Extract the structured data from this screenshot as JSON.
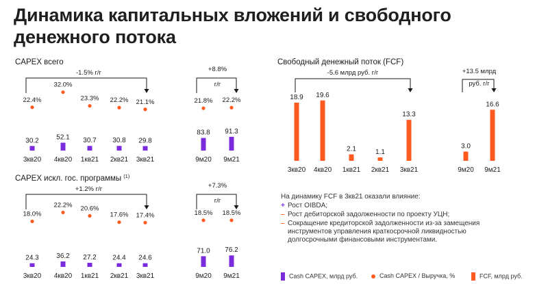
{
  "title": {
    "line1": "Динамика капитальных вложений и свободного",
    "line2": "денежного потока"
  },
  "colors": {
    "capex": "#7a2bdc",
    "ratio": "#ff5a1f",
    "fcf": "#ff5a1f",
    "text": "#1a1a1a"
  },
  "chart_data": [
    {
      "type": "bar",
      "title": "CAPEX всего",
      "categories": [
        "3кв20",
        "4кв20",
        "1кв21",
        "2кв21",
        "3кв21"
      ],
      "series": [
        {
          "name": "Cash CAPEX, млрд руб.",
          "values": [
            30.2,
            52.1,
            30.7,
            30.8,
            29.8
          ]
        },
        {
          "name": "Cash CAPEX / Выручка, %",
          "values": [
            "22.4%",
            "32.0%",
            "23.3%",
            "22.2%",
            "21.1%"
          ]
        }
      ],
      "ratio_values": [
        22.4,
        32.0,
        23.3,
        22.2,
        21.1
      ],
      "change_label": "-1.5% г/г",
      "nine_month": {
        "categories": [
          "9м20",
          "9м21"
        ],
        "values": [
          83.8,
          91.3
        ],
        "ratio_labels": [
          "21.8%",
          "22.2%"
        ],
        "ratio_values": [
          21.8,
          22.2
        ],
        "change_value": "+8.8%",
        "change_unit": "г/г"
      }
    },
    {
      "type": "bar",
      "title": "CAPEX искл. гос. программы",
      "title_sup": "(1)",
      "categories": [
        "3кв20",
        "4кв20",
        "1кв21",
        "2кв21",
        "3кв21"
      ],
      "series": [
        {
          "name": "Cash CAPEX, млрд руб.",
          "values": [
            24.3,
            36.2,
            27.2,
            24.4,
            24.6
          ]
        },
        {
          "name": "Cash CAPEX / Выручка, %",
          "values": [
            "18.0%",
            "22.2%",
            "20.6%",
            "17.6%",
            "17.4%"
          ]
        }
      ],
      "ratio_values": [
        18.0,
        22.2,
        20.6,
        17.6,
        17.4
      ],
      "change_label": "+1.2% г/г",
      "nine_month": {
        "categories": [
          "9м20",
          "9м21"
        ],
        "values": [
          71.0,
          76.2
        ],
        "ratio_labels": [
          "18.5%",
          "18.5%"
        ],
        "ratio_values": [
          18.5,
          18.5
        ],
        "change_value": "+7.3%",
        "change_unit": "г/г"
      }
    },
    {
      "type": "bar",
      "title": "Свободный денежный поток (FCF)",
      "categories": [
        "3кв20",
        "4кв20",
        "1кв21",
        "2кв21",
        "3кв21"
      ],
      "series": [
        {
          "name": "FCF, млрд руб.",
          "values": [
            18.9,
            19.6,
            2.1,
            1.1,
            13.3
          ]
        }
      ],
      "change_label": "-5.6 млрд руб. г/г",
      "nine_month": {
        "categories": [
          "9м20",
          "9м21"
        ],
        "values": [
          3.0,
          16.6
        ],
        "change_value": "+13.5 млрд",
        "change_unit": "руб. г/г"
      }
    }
  ],
  "note": {
    "heading": "На динамику FCF в 3кв21 оказали влияние:",
    "items": [
      {
        "sign": "+",
        "text": "Рост OIBDA;"
      },
      {
        "sign": "–",
        "text": "Рост дебиторской задолженности по проекту УЦН;"
      },
      {
        "sign": "–",
        "text": "Сокращение кредиторской задолженности из-за замещения инструментов управления краткосрочной ликвидностью долгосрочными финансовыми инструментами."
      }
    ]
  },
  "legend": {
    "capex": "Cash CAPEX, млрд руб.",
    "ratio": "Cash CAPEX / Выручка, %",
    "fcf": "FCF, млрд руб."
  }
}
